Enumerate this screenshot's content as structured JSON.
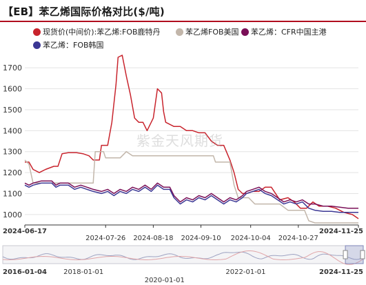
{
  "title": "【EB】苯乙烯国际价格对比($/吨)",
  "watermark": "紫金天风期货",
  "legend": [
    {
      "label": "现货价(中间价):苯乙烯:FOB鹿特丹",
      "color": "#c8232c"
    },
    {
      "label": "苯乙烯FOB美国",
      "color": "#c2b6aa"
    },
    {
      "label": "苯乙烯：CFR中国主港",
      "color": "#7a0f57"
    },
    {
      "label": "苯乙烯：FOB韩国",
      "color": "#3b3794"
    }
  ],
  "chart_data": {
    "type": "line",
    "title": "【EB】苯乙烯国际价格对比($/吨)",
    "xlabel": "",
    "ylabel": "",
    "ylim": [
      950,
      1760
    ],
    "yticks": [
      1000,
      1100,
      1200,
      1300,
      1400,
      1500,
      1600,
      1700
    ],
    "x_range": [
      "2024-06-17",
      "2024-11-25"
    ],
    "x_tick_labels": [
      "2024-06-17",
      "2024-07-26",
      "2024-08-18",
      "2024-09-10",
      "2024-10-04",
      "2024-10-27",
      "2024-11-25"
    ],
    "grid": "horizontal",
    "legend_position": "top",
    "series": [
      {
        "name": "现货价(中间价):苯乙烯:FOB鹿特丹",
        "color": "#c8232c",
        "points": [
          [
            "2024-06-17",
            1250
          ],
          [
            "2024-06-19",
            1250
          ],
          [
            "2024-06-21",
            1215
          ],
          [
            "2024-06-24",
            1200
          ],
          [
            "2024-06-27",
            1215
          ],
          [
            "2024-07-01",
            1230
          ],
          [
            "2024-07-03",
            1230
          ],
          [
            "2024-07-05",
            1290
          ],
          [
            "2024-07-08",
            1295
          ],
          [
            "2024-07-12",
            1295
          ],
          [
            "2024-07-15",
            1290
          ],
          [
            "2024-07-18",
            1280
          ],
          [
            "2024-07-20",
            1260
          ],
          [
            "2024-07-23",
            1260
          ],
          [
            "2024-07-24",
            1330
          ],
          [
            "2024-07-27",
            1330
          ],
          [
            "2024-07-29",
            1440
          ],
          [
            "2024-07-31",
            1620
          ],
          [
            "2024-08-01",
            1750
          ],
          [
            "2024-08-03",
            1760
          ],
          [
            "2024-08-05",
            1660
          ],
          [
            "2024-08-07",
            1570
          ],
          [
            "2024-08-09",
            1460
          ],
          [
            "2024-08-11",
            1440
          ],
          [
            "2024-08-13",
            1440
          ],
          [
            "2024-08-15",
            1400
          ],
          [
            "2024-08-17",
            1440
          ],
          [
            "2024-08-18",
            1460
          ],
          [
            "2024-08-20",
            1600
          ],
          [
            "2024-08-22",
            1580
          ],
          [
            "2024-08-23",
            1490
          ],
          [
            "2024-08-24",
            1440
          ],
          [
            "2024-08-28",
            1420
          ],
          [
            "2024-08-31",
            1420
          ],
          [
            "2024-09-03",
            1400
          ],
          [
            "2024-09-06",
            1400
          ],
          [
            "2024-09-09",
            1390
          ],
          [
            "2024-09-12",
            1390
          ],
          [
            "2024-09-15",
            1350
          ],
          [
            "2024-09-18",
            1330
          ],
          [
            "2024-09-21",
            1330
          ],
          [
            "2024-09-24",
            1260
          ],
          [
            "2024-09-26",
            1200
          ],
          [
            "2024-09-28",
            1120
          ],
          [
            "2024-09-30",
            1100
          ],
          [
            "2024-10-02",
            1100
          ],
          [
            "2024-10-05",
            1110
          ],
          [
            "2024-10-08",
            1110
          ],
          [
            "2024-10-11",
            1130
          ],
          [
            "2024-10-14",
            1130
          ],
          [
            "2024-10-18",
            1070
          ],
          [
            "2024-10-22",
            1080
          ],
          [
            "2024-10-25",
            1060
          ],
          [
            "2024-10-28",
            1030
          ],
          [
            "2024-10-31",
            1030
          ],
          [
            "2024-11-03",
            1060
          ],
          [
            "2024-11-06",
            1040
          ],
          [
            "2024-11-10",
            1040
          ],
          [
            "2024-11-14",
            1030
          ],
          [
            "2024-11-18",
            1010
          ],
          [
            "2024-11-22",
            1000
          ],
          [
            "2024-11-25",
            980
          ]
        ]
      },
      {
        "name": "苯乙烯FOB美国",
        "color": "#c2b6aa",
        "points": [
          [
            "2024-06-17",
            1260
          ],
          [
            "2024-06-19",
            1240
          ],
          [
            "2024-06-21",
            1150
          ],
          [
            "2024-07-05",
            1150
          ],
          [
            "2024-07-10",
            1150
          ],
          [
            "2024-07-20",
            1150
          ],
          [
            "2024-07-21",
            1300
          ],
          [
            "2024-07-25",
            1300
          ],
          [
            "2024-07-26",
            1270
          ],
          [
            "2024-08-02",
            1270
          ],
          [
            "2024-08-05",
            1300
          ],
          [
            "2024-08-08",
            1280
          ],
          [
            "2024-08-20",
            1280
          ],
          [
            "2024-09-01",
            1280
          ],
          [
            "2024-09-16",
            1280
          ],
          [
            "2024-09-17",
            1250
          ],
          [
            "2024-09-24",
            1250
          ],
          [
            "2024-09-26",
            1140
          ],
          [
            "2024-09-28",
            1080
          ],
          [
            "2024-10-03",
            1080
          ],
          [
            "2024-10-06",
            1050
          ],
          [
            "2024-10-12",
            1050
          ],
          [
            "2024-10-18",
            1050
          ],
          [
            "2024-10-22",
            1020
          ],
          [
            "2024-10-30",
            1020
          ],
          [
            "2024-11-01",
            970
          ],
          [
            "2024-11-04",
            960
          ],
          [
            "2024-11-25",
            960
          ]
        ]
      },
      {
        "name": "苯乙烯：CFR中国主港",
        "color": "#7a0f57",
        "points": [
          [
            "2024-06-17",
            1150
          ],
          [
            "2024-06-19",
            1140
          ],
          [
            "2024-06-21",
            1150
          ],
          [
            "2024-06-25",
            1160
          ],
          [
            "2024-06-30",
            1160
          ],
          [
            "2024-07-02",
            1140
          ],
          [
            "2024-07-04",
            1150
          ],
          [
            "2024-07-08",
            1150
          ],
          [
            "2024-07-11",
            1130
          ],
          [
            "2024-07-14",
            1140
          ],
          [
            "2024-07-17",
            1130
          ],
          [
            "2024-07-20",
            1120
          ],
          [
            "2024-07-24",
            1110
          ],
          [
            "2024-07-27",
            1120
          ],
          [
            "2024-07-30",
            1100
          ],
          [
            "2024-08-02",
            1120
          ],
          [
            "2024-08-05",
            1110
          ],
          [
            "2024-08-08",
            1130
          ],
          [
            "2024-08-11",
            1120
          ],
          [
            "2024-08-14",
            1140
          ],
          [
            "2024-08-17",
            1120
          ],
          [
            "2024-08-20",
            1150
          ],
          [
            "2024-08-23",
            1130
          ],
          [
            "2024-08-26",
            1130
          ],
          [
            "2024-08-28",
            1090
          ],
          [
            "2024-08-31",
            1060
          ],
          [
            "2024-09-03",
            1080
          ],
          [
            "2024-09-06",
            1070
          ],
          [
            "2024-09-09",
            1090
          ],
          [
            "2024-09-12",
            1080
          ],
          [
            "2024-09-15",
            1100
          ],
          [
            "2024-09-18",
            1080
          ],
          [
            "2024-09-21",
            1060
          ],
          [
            "2024-09-24",
            1080
          ],
          [
            "2024-09-27",
            1070
          ],
          [
            "2024-09-30",
            1090
          ],
          [
            "2024-10-02",
            1110
          ],
          [
            "2024-10-05",
            1120
          ],
          [
            "2024-10-08",
            1130
          ],
          [
            "2024-10-11",
            1110
          ],
          [
            "2024-10-14",
            1100
          ],
          [
            "2024-10-17",
            1080
          ],
          [
            "2024-10-20",
            1060
          ],
          [
            "2024-10-23",
            1070
          ],
          [
            "2024-10-26",
            1060
          ],
          [
            "2024-10-29",
            1070
          ],
          [
            "2024-11-01",
            1050
          ],
          [
            "2024-11-04",
            1050
          ],
          [
            "2024-11-08",
            1040
          ],
          [
            "2024-11-12",
            1040
          ],
          [
            "2024-11-16",
            1035
          ],
          [
            "2024-11-20",
            1030
          ],
          [
            "2024-11-25",
            1030
          ]
        ]
      },
      {
        "name": "苯乙烯：FOB韩国",
        "color": "#3b3794",
        "points": [
          [
            "2024-06-17",
            1140
          ],
          [
            "2024-06-19",
            1130
          ],
          [
            "2024-06-21",
            1140
          ],
          [
            "2024-06-25",
            1150
          ],
          [
            "2024-06-30",
            1150
          ],
          [
            "2024-07-02",
            1130
          ],
          [
            "2024-07-04",
            1140
          ],
          [
            "2024-07-08",
            1140
          ],
          [
            "2024-07-11",
            1120
          ],
          [
            "2024-07-14",
            1130
          ],
          [
            "2024-07-17",
            1120
          ],
          [
            "2024-07-20",
            1110
          ],
          [
            "2024-07-24",
            1100
          ],
          [
            "2024-07-27",
            1110
          ],
          [
            "2024-07-30",
            1090
          ],
          [
            "2024-08-02",
            1110
          ],
          [
            "2024-08-05",
            1100
          ],
          [
            "2024-08-08",
            1120
          ],
          [
            "2024-08-11",
            1110
          ],
          [
            "2024-08-14",
            1130
          ],
          [
            "2024-08-17",
            1110
          ],
          [
            "2024-08-20",
            1140
          ],
          [
            "2024-08-23",
            1120
          ],
          [
            "2024-08-26",
            1120
          ],
          [
            "2024-08-28",
            1080
          ],
          [
            "2024-08-31",
            1050
          ],
          [
            "2024-09-03",
            1070
          ],
          [
            "2024-09-06",
            1060
          ],
          [
            "2024-09-09",
            1080
          ],
          [
            "2024-09-12",
            1070
          ],
          [
            "2024-09-15",
            1090
          ],
          [
            "2024-09-18",
            1070
          ],
          [
            "2024-09-21",
            1050
          ],
          [
            "2024-09-24",
            1070
          ],
          [
            "2024-09-27",
            1060
          ],
          [
            "2024-09-30",
            1080
          ],
          [
            "2024-10-02",
            1100
          ],
          [
            "2024-10-05",
            1110
          ],
          [
            "2024-10-08",
            1120
          ],
          [
            "2024-10-11",
            1100
          ],
          [
            "2024-10-14",
            1090
          ],
          [
            "2024-10-17",
            1070
          ],
          [
            "2024-10-20",
            1050
          ],
          [
            "2024-10-23",
            1060
          ],
          [
            "2024-10-26",
            1050
          ],
          [
            "2024-10-29",
            1060
          ],
          [
            "2024-11-01",
            1030
          ],
          [
            "2024-11-04",
            1020
          ],
          [
            "2024-11-08",
            1015
          ],
          [
            "2024-11-12",
            1015
          ],
          [
            "2024-11-16",
            1010
          ],
          [
            "2024-11-20",
            1010
          ],
          [
            "2024-11-25",
            1010
          ]
        ]
      }
    ],
    "navigator": {
      "range": [
        "2016-01-04",
        "2024-11-25"
      ],
      "tick_labels": [
        "2016-01-04",
        "2018-01-01",
        "2020-01-01",
        "2022-01-01",
        "2024-11-25"
      ],
      "selected_range": [
        "2024-06-17",
        "2024-11-25"
      ]
    }
  }
}
